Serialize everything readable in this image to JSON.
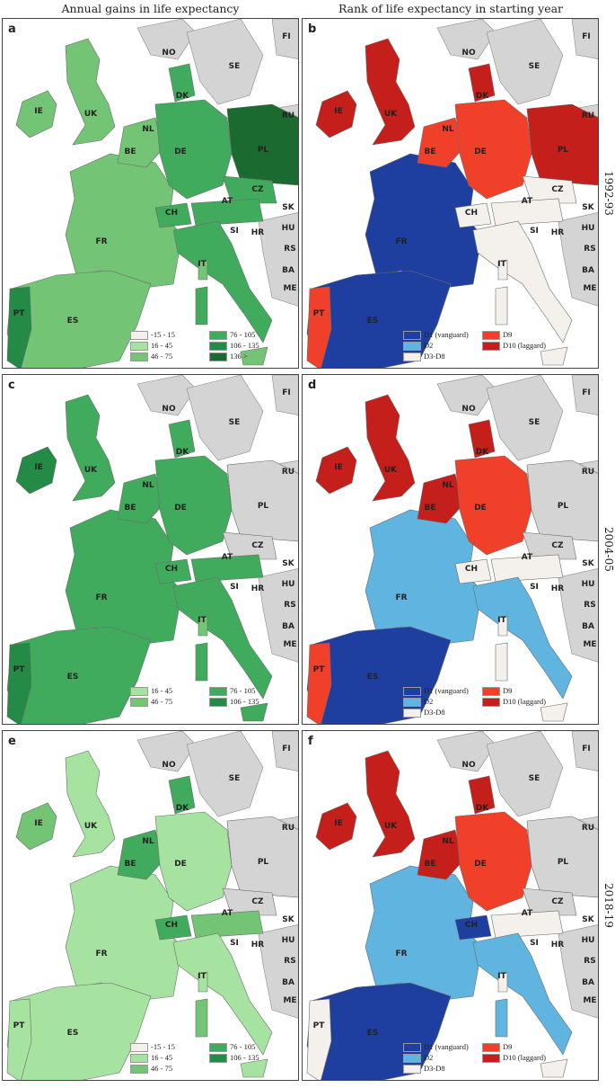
{
  "column_titles": {
    "left": "Annual gains in life expectancy",
    "right": "Rank of life expectancy in starting year"
  },
  "periods": [
    "1992-93",
    "2004-05",
    "2018-19"
  ],
  "panel_letters": [
    "a",
    "b",
    "c",
    "d",
    "e",
    "f"
  ],
  "country_labels": [
    "NO",
    "SE",
    "FI",
    "DK",
    "RU",
    "IE",
    "UK",
    "NL",
    "PL",
    "BE",
    "DE",
    "CZ",
    "SK",
    "AT",
    "HU",
    "FR",
    "CH",
    "SI",
    "HR",
    "RS",
    "BA",
    "ME",
    "IT",
    "PT",
    "ES"
  ],
  "legend_gains_full": [
    "-15 - 15",
    "16 - 45",
    "46 - 75",
    "76 - 105",
    "106 - 135",
    "136 >"
  ],
  "legend_gains_mid": [
    "16 - 45",
    "46 - 75",
    "76 - 105",
    "106 - 135"
  ],
  "legend_gains_late": [
    "-15 - 15",
    "16 - 45",
    "46 - 75",
    "76 - 105",
    "106 - 135"
  ],
  "legend_rank": [
    "D1 (vanguard)",
    "D2",
    "D3-D8",
    "D9",
    "D10 (laggard)"
  ],
  "colors": {
    "gain_-15_15": "#f4f0ec",
    "gain_16_45": "#a6e3a0",
    "gain_46_75": "#74c476",
    "gain_76_105": "#41ab5d",
    "gain_106_135": "#238b45",
    "gain_136": "#1b6b30",
    "rank_D1": "#1f3fa0",
    "rank_D2": "#5fb4e0",
    "rank_D3_D8": "#f4f0ec",
    "rank_D9": "#f0402a",
    "rank_D10": "#c41f1a",
    "neighbor": "#d4d4d4",
    "sea": "#ffffff"
  }
}
